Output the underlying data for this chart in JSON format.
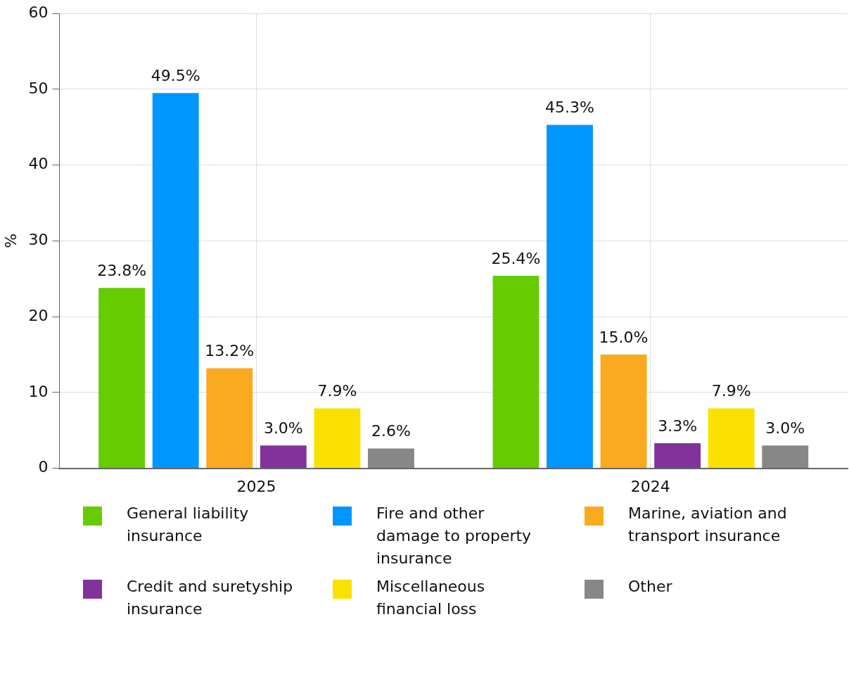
{
  "chart_data": {
    "type": "bar",
    "ylabel": "%",
    "categories": [
      "2025",
      "2024"
    ],
    "series": [
      {
        "name": "General liability insurance",
        "color": "#66cc00",
        "values": [
          23.8,
          25.4
        ],
        "value_labels": [
          "23.8%",
          "25.4%"
        ]
      },
      {
        "name": "Fire and other damage to property insurance",
        "color": "#0096ff",
        "values": [
          49.5,
          45.3
        ],
        "value_labels": [
          "49.5%",
          "45.3%"
        ]
      },
      {
        "name": "Marine, aviation and transport insurance",
        "color": "#faaa1e",
        "values": [
          13.2,
          15.0
        ],
        "value_labels": [
          "13.2%",
          "15.0%"
        ]
      },
      {
        "name": "Credit and suretyship insurance",
        "color": "#82329b",
        "values": [
          3.0,
          3.3
        ],
        "value_labels": [
          "3.0%",
          "3.3%"
        ]
      },
      {
        "name": "Miscellaneous financial loss",
        "color": "#fae100",
        "values": [
          7.9,
          7.9
        ],
        "value_labels": [
          "7.9%",
          "7.9%"
        ]
      },
      {
        "name": "Other",
        "color": "#878787",
        "values": [
          2.6,
          3.0
        ],
        "value_labels": [
          "2.6%",
          "3.0%"
        ]
      }
    ],
    "ylim": [
      0,
      60
    ],
    "yticks": [
      0,
      10,
      20,
      30,
      40,
      50,
      60
    ],
    "grid": true,
    "legend": "bottom"
  }
}
